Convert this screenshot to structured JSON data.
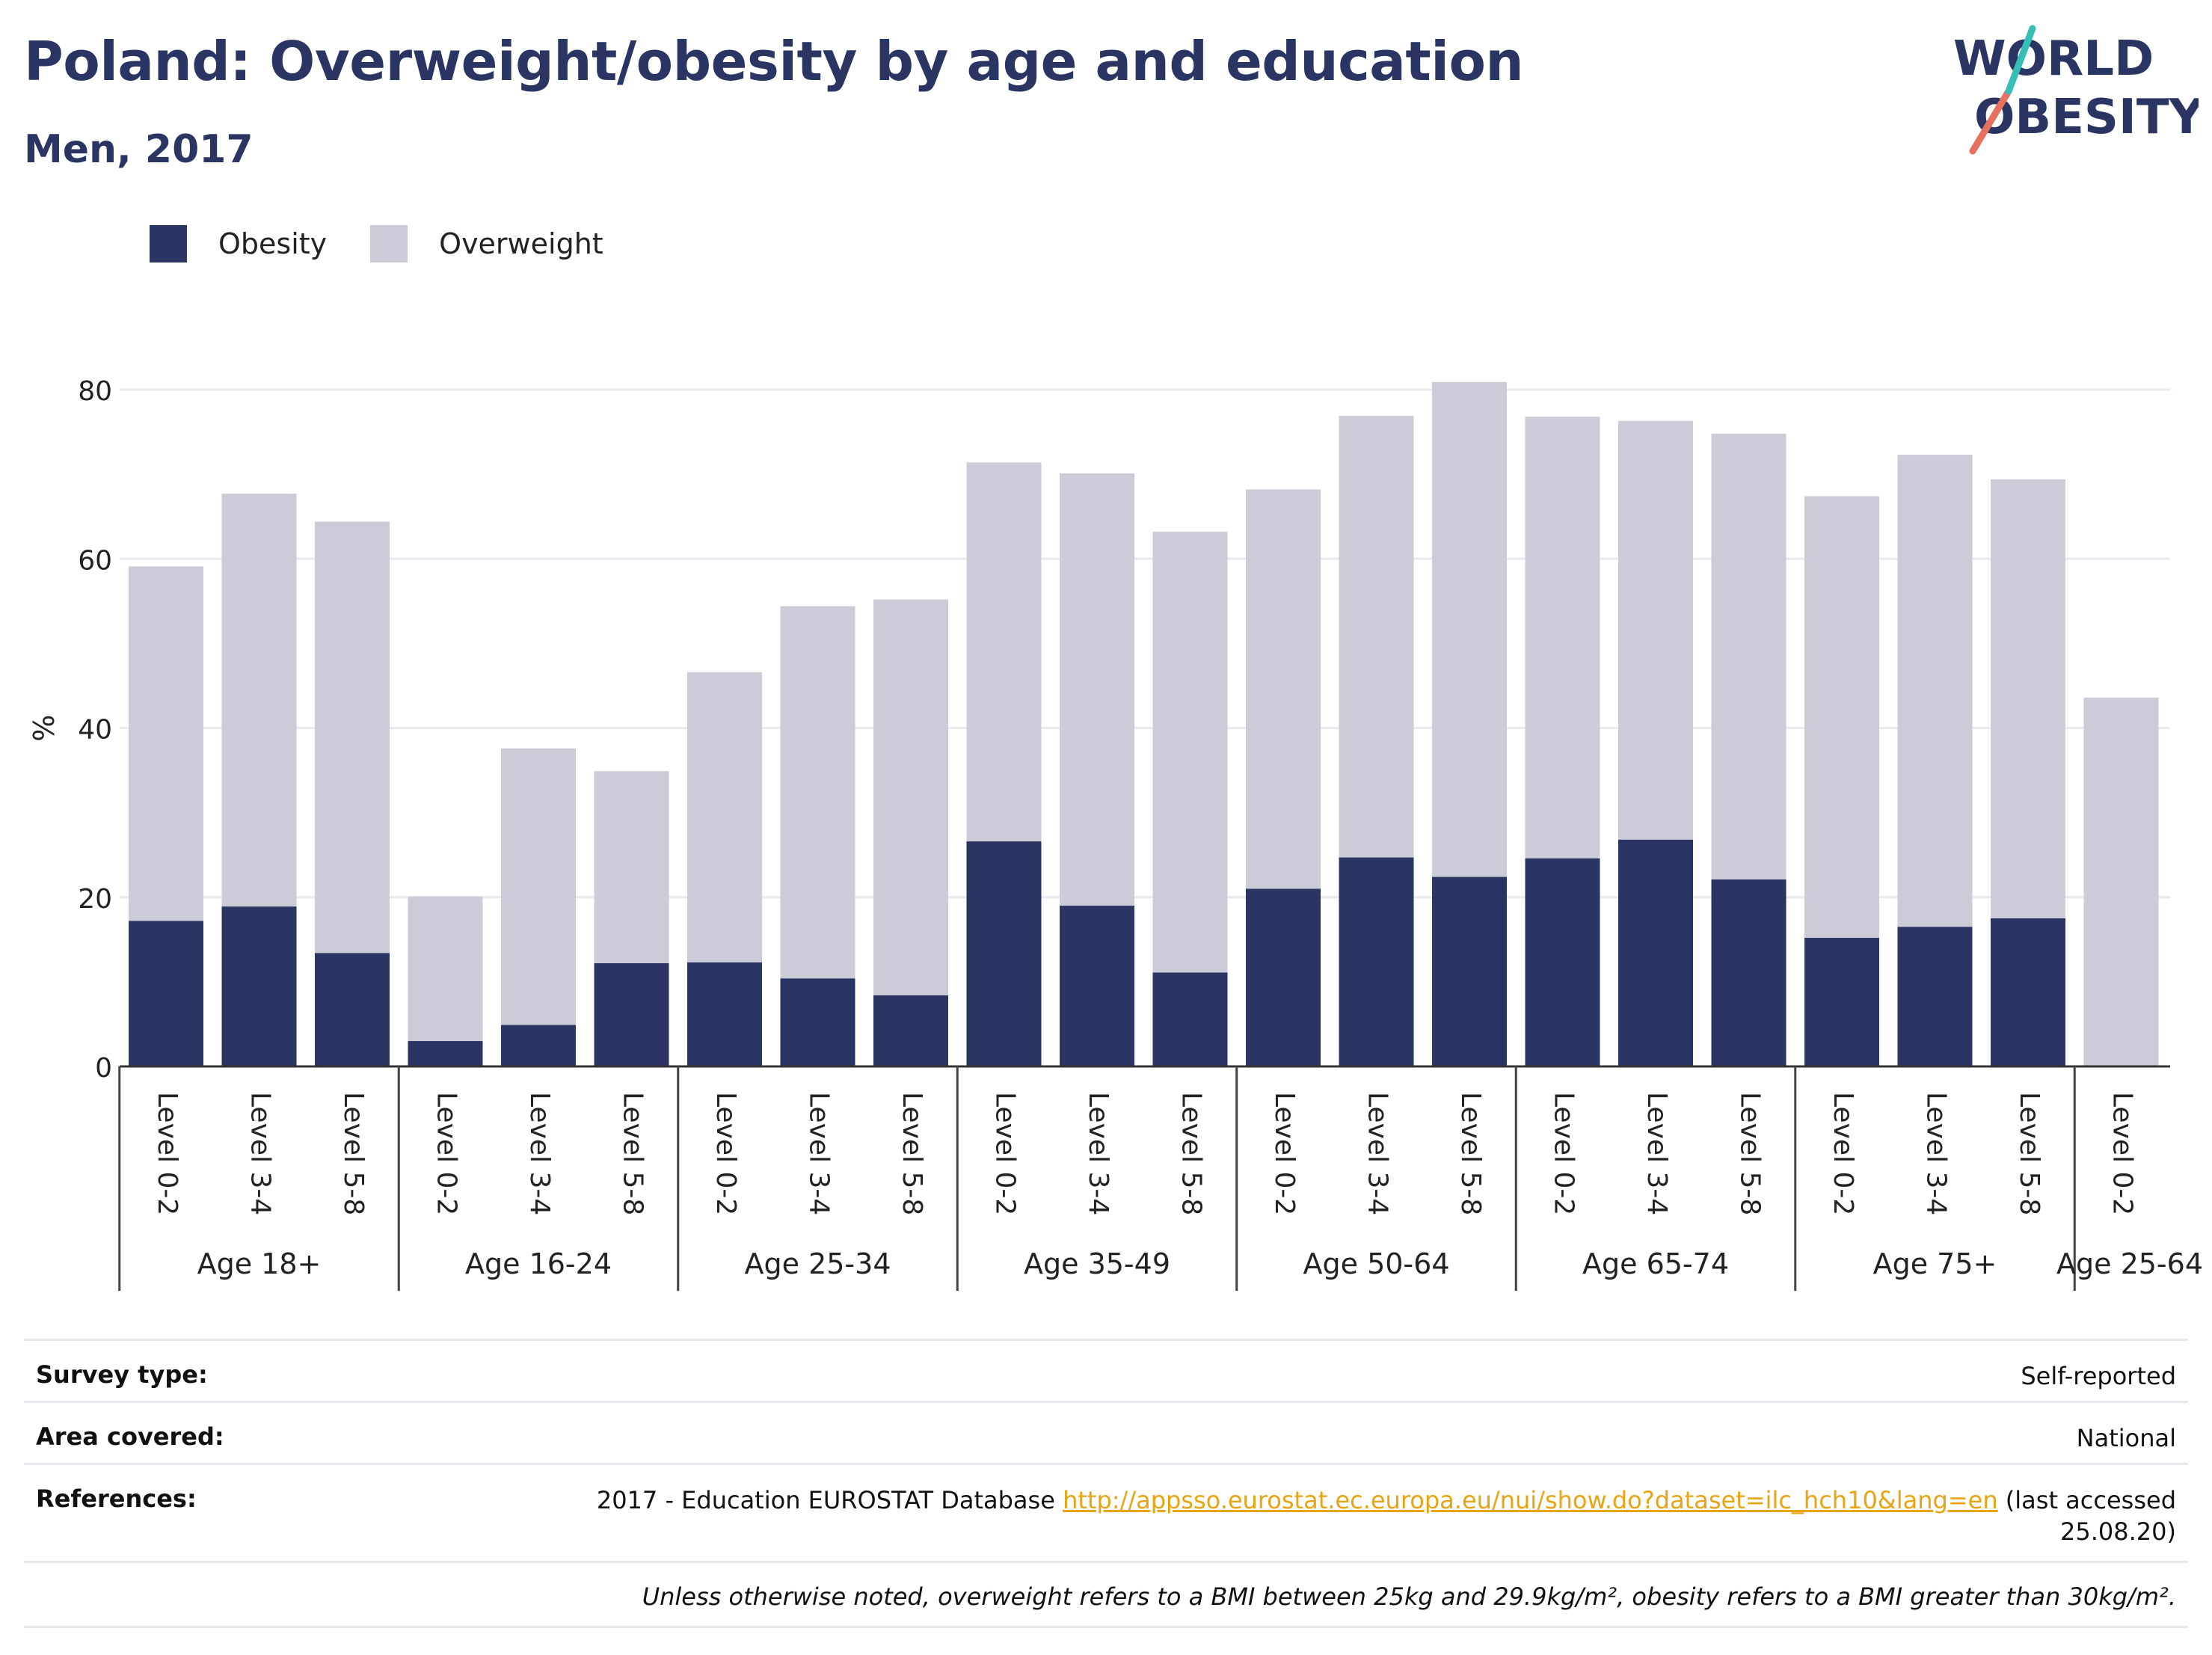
{
  "header": {
    "title": "Poland: Overweight/obesity by age and education",
    "subtitle": "Men, 2017"
  },
  "logo": {
    "line1": "WORLD",
    "line2": "OBESITY"
  },
  "colors": {
    "obesity": "#2a3563",
    "overweight": "#cbccd7",
    "title": "#2a3563",
    "link": "#e8a413"
  },
  "chart_data": {
    "type": "bar",
    "stacked": true,
    "ylabel": "%",
    "ylim": [
      0,
      80
    ],
    "yticks": [
      0,
      20,
      40,
      60,
      80
    ],
    "grid": true,
    "legend_position": "top-left",
    "groups": [
      {
        "label": "Age 18+",
        "categories": [
          "Level 0-2",
          "Level 3-4",
          "Level 5-8"
        ]
      },
      {
        "label": "Age 16-24",
        "categories": [
          "Level 0-2",
          "Level 3-4",
          "Level 5-8"
        ]
      },
      {
        "label": "Age 25-34",
        "categories": [
          "Level 0-2",
          "Level 3-4",
          "Level 5-8"
        ]
      },
      {
        "label": "Age 35-49",
        "categories": [
          "Level 0-2",
          "Level 3-4",
          "Level 5-8"
        ]
      },
      {
        "label": "Age 50-64",
        "categories": [
          "Level 0-2",
          "Level 3-4",
          "Level 5-8"
        ]
      },
      {
        "label": "Age 65-74",
        "categories": [
          "Level 0-2",
          "Level 3-4",
          "Level 5-8"
        ]
      },
      {
        "label": "Age 75+",
        "categories": [
          "Level 0-2",
          "Level 3-4",
          "Level 5-8"
        ]
      },
      {
        "label": "Age 25-64",
        "categories": [
          "Level 0-2"
        ]
      }
    ],
    "series": [
      {
        "name": "Obesity",
        "values": [
          17.2,
          18.9,
          13.4,
          3.0,
          4.9,
          12.2,
          12.3,
          10.4,
          8.4,
          26.6,
          19.0,
          11.1,
          21.0,
          24.7,
          22.4,
          24.6,
          26.8,
          22.1,
          15.2,
          16.5,
          17.5,
          0
        ]
      },
      {
        "name": "Overweight",
        "values": [
          41.9,
          48.8,
          51.0,
          17.1,
          32.7,
          22.7,
          34.3,
          44.0,
          46.8,
          44.8,
          51.1,
          52.1,
          47.2,
          52.2,
          58.5,
          52.2,
          49.5,
          52.7,
          52.2,
          55.8,
          51.9,
          43.6
        ]
      }
    ]
  },
  "info": {
    "survey_label": "Survey type:",
    "survey_value": "Self-reported",
    "area_label": "Area covered:",
    "area_value": "National",
    "ref_label": "References:",
    "ref_prefix": "2017 - Education EUROSTAT Database ",
    "ref_link": "http://appsso.eurostat.ec.europa.eu/nui/show.do?dataset=ilc_hch10&lang=en",
    "ref_suffix": " (last accessed 25.08.20)",
    "note": "Unless otherwise noted, overweight refers to a BMI between 25kg and 29.9kg/m², obesity refers to a BMI greater than 30kg/m²."
  }
}
